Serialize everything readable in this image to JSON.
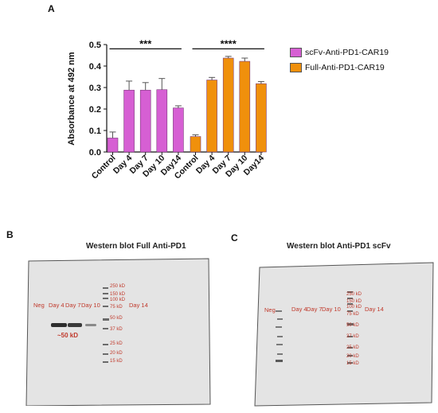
{
  "panels": {
    "a_letter": "A",
    "b_letter": "B",
    "c_letter": "C"
  },
  "chart_data": {
    "type": "bar",
    "title": "",
    "xlabel": "",
    "ylabel": "Absorbance at 492 nm",
    "ylim": [
      0,
      0.5
    ],
    "yticks": [
      "0.0",
      "0.1",
      "0.2",
      "0.3",
      "0.4",
      "0.5"
    ],
    "grid": false,
    "legend_position": "right",
    "series": [
      {
        "name": "scFv-Anti-PD1-CAR19",
        "color": "#d65fd3",
        "categories": [
          "Control",
          "Day 4",
          "Day 7",
          "Day 10",
          "Day14"
        ],
        "values": [
          0.065,
          0.288,
          0.288,
          0.29,
          0.205
        ],
        "errors": [
          0.028,
          0.042,
          0.035,
          0.052,
          0.01
        ]
      },
      {
        "name": "Full-Anti-PD1-CAR19",
        "color": "#f0900c",
        "categories": [
          "Control",
          "Day 4",
          "Day 7",
          "Day 10",
          "Day14"
        ],
        "values": [
          0.072,
          0.335,
          0.437,
          0.422,
          0.318
        ],
        "errors": [
          0.008,
          0.012,
          0.008,
          0.015,
          0.01
        ]
      }
    ],
    "annotations": [
      "***",
      "****"
    ]
  },
  "blot_b": {
    "title": "Western blot Full Anti-PD1",
    "lanes": [
      "Neg",
      "Day 4",
      "Day 7",
      "Day 10",
      "Day 14"
    ],
    "markers": [
      "250 kD",
      "150 kD",
      "100 kD",
      "75 kD",
      "50 kD",
      "37 kD",
      "25 kD",
      "20 kD",
      "15 kD"
    ],
    "band_label": "~50 kD"
  },
  "blot_c": {
    "title": "Western blot Anti-PD1 scFv",
    "lanes": [
      "Neg",
      "Day 4",
      "Day 7",
      "Day 10",
      "Day 14"
    ],
    "markers": [
      "250 kD",
      "150 kD",
      "100 kD",
      "75 kD",
      "50 kD",
      "37 kD",
      "25 kD",
      "20 kD",
      "15 kD"
    ]
  },
  "colors": {
    "scfv": "#d65fd3",
    "full": "#f0900c",
    "blot_label": "#c0392b",
    "blot_bg": "#e6e6e6"
  }
}
